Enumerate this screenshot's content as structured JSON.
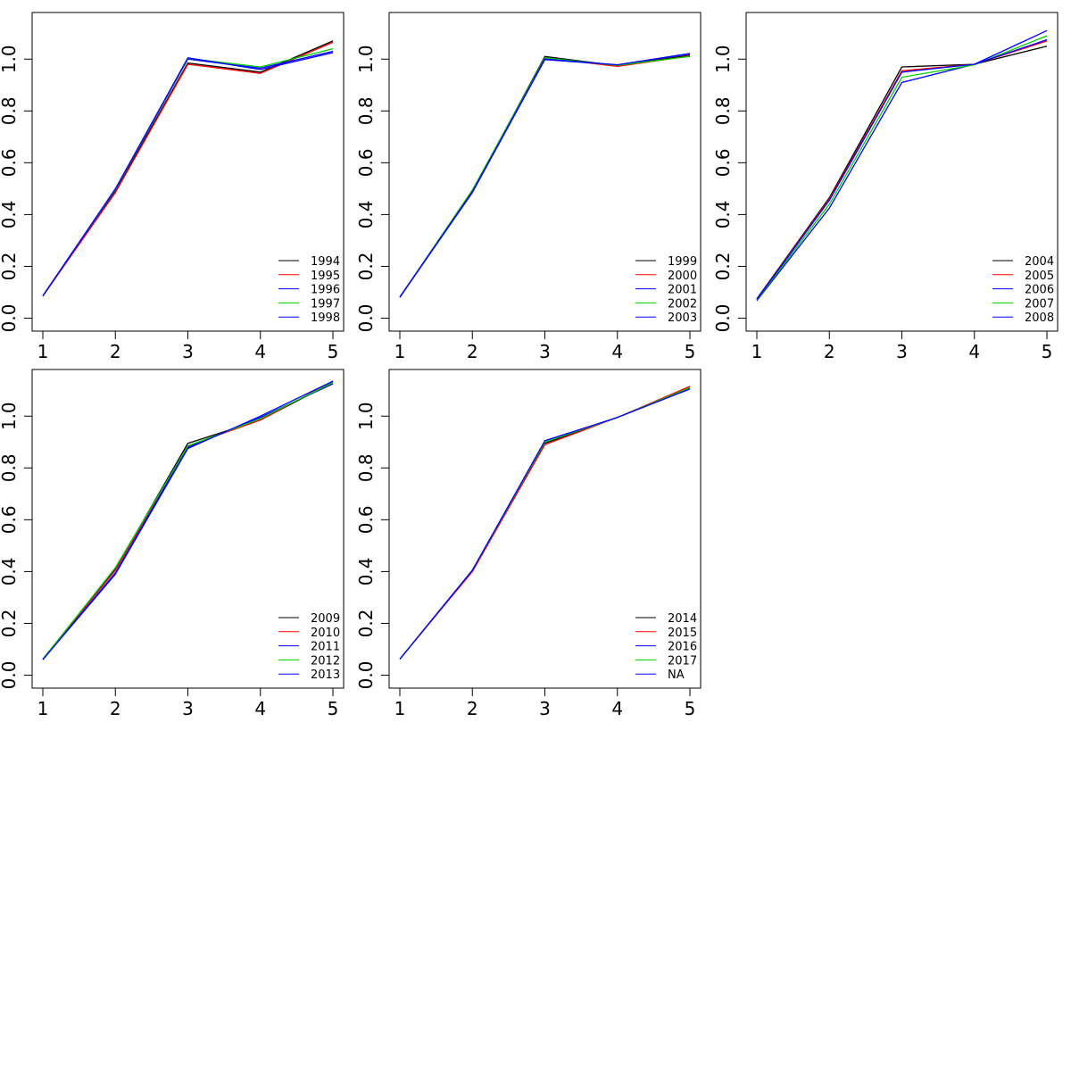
{
  "chart_data": [
    {
      "type": "line",
      "x": [
        1,
        2,
        3,
        4,
        5
      ],
      "xticks": [
        1,
        2,
        3,
        4,
        5
      ],
      "yticks": [
        0.0,
        0.2,
        0.4,
        0.6,
        0.8,
        1.0
      ],
      "ytick_labels": [
        "0.0",
        "0.2",
        "0.4",
        "0.6",
        "0.8",
        "1.0"
      ],
      "ylim": [
        -0.05,
        1.18
      ],
      "legend_position": "bottom-right",
      "series": [
        {
          "name": "1994",
          "color": "#000000",
          "values": [
            0.085,
            0.49,
            0.985,
            0.95,
            1.07
          ]
        },
        {
          "name": "1995",
          "color": "#ff0000",
          "values": [
            0.085,
            0.485,
            0.98,
            0.945,
            1.065
          ]
        },
        {
          "name": "1996",
          "color": "#0000ff",
          "values": [
            0.086,
            0.495,
            1.0,
            0.965,
            1.03
          ]
        },
        {
          "name": "1997",
          "color": "#00cd00",
          "values": [
            0.087,
            0.497,
            1.003,
            0.97,
            1.04
          ]
        },
        {
          "name": "1998",
          "color": "#0000ff",
          "values": [
            0.086,
            0.5,
            1.005,
            0.96,
            1.025
          ]
        }
      ]
    },
    {
      "type": "line",
      "x": [
        1,
        2,
        3,
        4,
        5
      ],
      "xticks": [
        1,
        2,
        3,
        4,
        5
      ],
      "yticks": [
        0.0,
        0.2,
        0.4,
        0.6,
        0.8,
        1.0
      ],
      "ytick_labels": [
        "0.0",
        "0.2",
        "0.4",
        "0.6",
        "0.8",
        "1.0"
      ],
      "ylim": [
        -0.05,
        1.18
      ],
      "legend_position": "bottom-right",
      "series": [
        {
          "name": "1999",
          "color": "#000000",
          "values": [
            0.08,
            0.49,
            1.01,
            0.975,
            1.015
          ]
        },
        {
          "name": "2000",
          "color": "#ff0000",
          "values": [
            0.08,
            0.49,
            1.005,
            0.972,
            1.012
          ]
        },
        {
          "name": "2001",
          "color": "#0000ff",
          "values": [
            0.081,
            0.485,
            0.998,
            0.978,
            1.02
          ]
        },
        {
          "name": "2002",
          "color": "#00cd00",
          "values": [
            0.081,
            0.495,
            1.005,
            0.976,
            1.01
          ]
        },
        {
          "name": "2003",
          "color": "#0000ff",
          "values": [
            0.082,
            0.488,
            1.0,
            0.978,
            1.022
          ]
        }
      ]
    },
    {
      "type": "line",
      "x": [
        1,
        2,
        3,
        4,
        5
      ],
      "xticks": [
        1,
        2,
        3,
        4,
        5
      ],
      "yticks": [
        0.0,
        0.2,
        0.4,
        0.6,
        0.8,
        1.0
      ],
      "ytick_labels": [
        "0.0",
        "0.2",
        "0.4",
        "0.6",
        "0.8",
        "1.0"
      ],
      "ylim": [
        -0.05,
        1.18
      ],
      "legend_position": "bottom-right",
      "series": [
        {
          "name": "2004",
          "color": "#000000",
          "values": [
            0.075,
            0.465,
            0.97,
            0.98,
            1.05
          ]
        },
        {
          "name": "2005",
          "color": "#ff0000",
          "values": [
            0.074,
            0.46,
            0.955,
            0.98,
            1.07
          ]
        },
        {
          "name": "2006",
          "color": "#0000ff",
          "values": [
            0.068,
            0.425,
            0.91,
            0.98,
            1.11
          ]
        },
        {
          "name": "2007",
          "color": "#00cd00",
          "values": [
            0.071,
            0.44,
            0.93,
            0.978,
            1.09
          ]
        },
        {
          "name": "2008",
          "color": "#0000ff",
          "values": [
            0.073,
            0.455,
            0.95,
            0.98,
            1.075
          ]
        }
      ]
    },
    {
      "type": "line",
      "x": [
        1,
        2,
        3,
        4,
        5
      ],
      "xticks": [
        1,
        2,
        3,
        4,
        5
      ],
      "yticks": [
        0.0,
        0.2,
        0.4,
        0.6,
        0.8,
        1.0
      ],
      "ytick_labels": [
        "0.0",
        "0.2",
        "0.4",
        "0.6",
        "0.8",
        "1.0"
      ],
      "ylim": [
        -0.05,
        1.18
      ],
      "legend_position": "bottom-right",
      "series": [
        {
          "name": "2009",
          "color": "#000000",
          "values": [
            0.062,
            0.41,
            0.895,
            0.985,
            1.13
          ]
        },
        {
          "name": "2010",
          "color": "#ff0000",
          "values": [
            0.061,
            0.405,
            0.885,
            0.985,
            1.135
          ]
        },
        {
          "name": "2011",
          "color": "#0000ff",
          "values": [
            0.06,
            0.395,
            0.88,
            0.995,
            1.125
          ]
        },
        {
          "name": "2012",
          "color": "#00cd00",
          "values": [
            0.062,
            0.415,
            0.885,
            0.99,
            1.13
          ]
        },
        {
          "name": "2013",
          "color": "#0000ff",
          "values": [
            0.06,
            0.39,
            0.875,
            1.0,
            1.135
          ]
        }
      ]
    },
    {
      "type": "line",
      "x": [
        1,
        2,
        3,
        4,
        5
      ],
      "xticks": [
        1,
        2,
        3,
        4,
        5
      ],
      "yticks": [
        0.0,
        0.2,
        0.4,
        0.6,
        0.8,
        1.0
      ],
      "ytick_labels": [
        "0.0",
        "0.2",
        "0.4",
        "0.6",
        "0.8",
        "1.0"
      ],
      "ylim": [
        -0.05,
        1.18
      ],
      "legend_position": "bottom-right",
      "series": [
        {
          "name": "2014",
          "color": "#000000",
          "values": [
            0.062,
            0.405,
            0.895,
            0.995,
            1.11
          ]
        },
        {
          "name": "2015",
          "color": "#ff0000",
          "values": [
            0.062,
            0.4,
            0.89,
            0.995,
            1.115
          ]
        },
        {
          "name": "2016",
          "color": "#0000ff",
          "values": [
            0.062,
            0.405,
            0.9,
            0.995,
            1.105
          ]
        },
        {
          "name": "2017",
          "color": "#00cd00",
          "values": [
            0.062,
            0.405,
            0.9,
            0.995,
            1.11
          ]
        },
        {
          "name": "NA",
          "color": "#0000ff",
          "values": [
            0.062,
            0.405,
            0.905,
            0.995,
            1.105
          ]
        }
      ]
    }
  ]
}
